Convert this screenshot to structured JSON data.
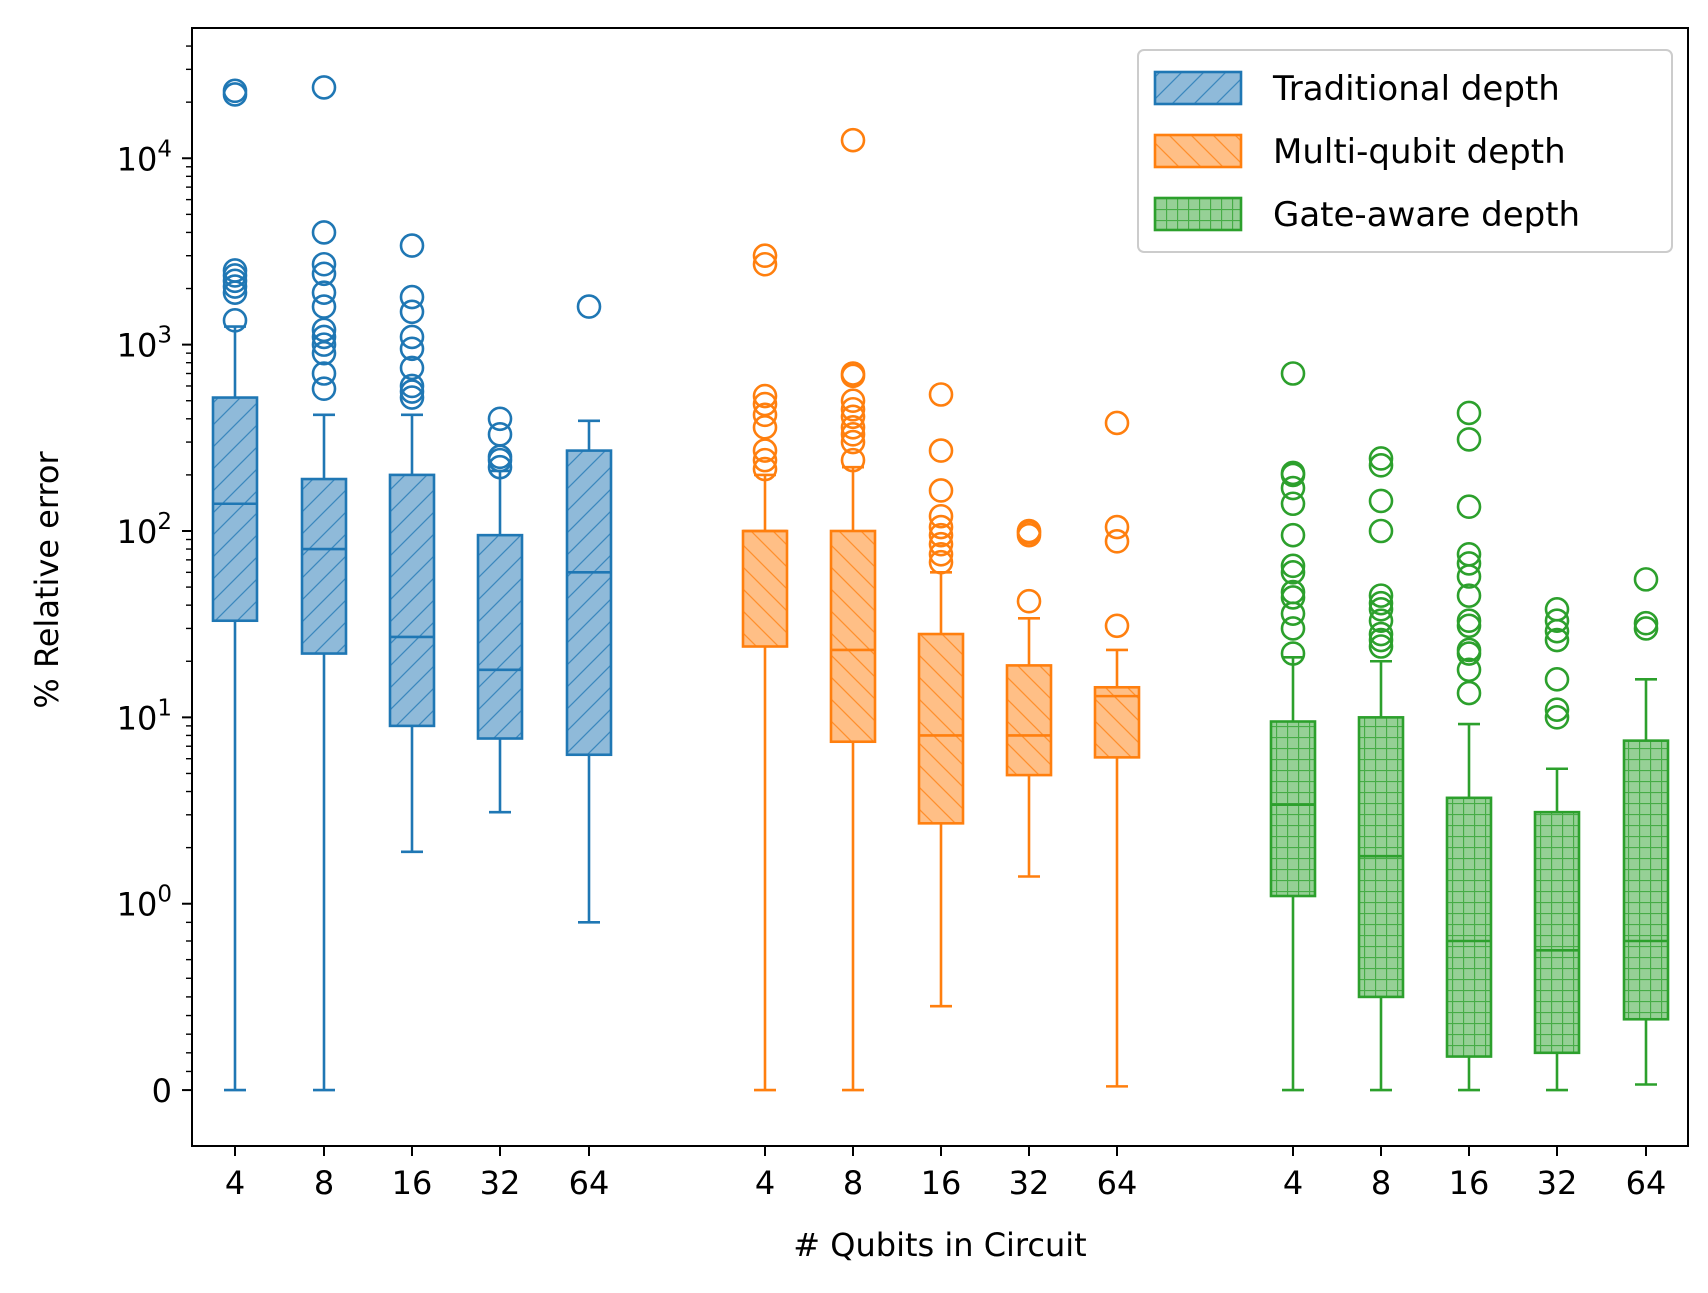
{
  "chart_data": {
    "type": "box",
    "title": "",
    "xlabel": "# Qubits in Circuit",
    "ylabel": "% Relative error",
    "yscale": "symlog",
    "ylim": [
      -0.3,
      50000
    ],
    "y_ticks": [
      {
        "value": 0,
        "base": "0",
        "exp": ""
      },
      {
        "value": 1,
        "base": "10",
        "exp": "0"
      },
      {
        "value": 10,
        "base": "10",
        "exp": "1"
      },
      {
        "value": 100,
        "base": "10",
        "exp": "2"
      },
      {
        "value": 1000,
        "base": "10",
        "exp": "3"
      },
      {
        "value": 10000,
        "base": "10",
        "exp": "4"
      }
    ],
    "categories": [
      "4",
      "8",
      "16",
      "32",
      "64"
    ],
    "legend_position": "top-right",
    "grid": false,
    "series": [
      {
        "name": "Traditional depth",
        "color": "#1f77b4",
        "fill": "#8fbad9",
        "hatch": "diagonal-up",
        "boxes": [
          {
            "category": "4",
            "whisker_low": 0,
            "q1": 33,
            "median": 140,
            "q3": 520,
            "whisker_high": 1250,
            "outliers": [
              1350,
              1900,
              2050,
              2200,
              2350,
              2500,
              22000,
              23000
            ]
          },
          {
            "category": "8",
            "whisker_low": 0,
            "q1": 22,
            "median": 80,
            "q3": 190,
            "whisker_high": 420,
            "outliers": [
              580,
              700,
              900,
              1000,
              1100,
              1200,
              1600,
              1900,
              2400,
              2700,
              4000,
              24000
            ]
          },
          {
            "category": "16",
            "whisker_low": 1.9,
            "q1": 9,
            "median": 27,
            "q3": 200,
            "whisker_high": 420,
            "outliers": [
              520,
              560,
              600,
              750,
              950,
              1100,
              1500,
              1800,
              3400
            ]
          },
          {
            "category": "32",
            "whisker_low": 3.1,
            "q1": 7.7,
            "median": 18,
            "q3": 95,
            "whisker_high": 210,
            "outliers": [
              220,
              240,
              250,
              330,
              400
            ]
          },
          {
            "category": "64",
            "whisker_low": 0.9,
            "q1": 6.3,
            "median": 60,
            "q3": 270,
            "whisker_high": 390,
            "outliers": [
              1600
            ]
          }
        ]
      },
      {
        "name": "Multi-qubit depth",
        "color": "#ff7f0e",
        "fill": "#ffbf86",
        "hatch": "diagonal-down",
        "boxes": [
          {
            "category": "4",
            "whisker_low": 0,
            "q1": 24,
            "median": 100,
            "q3": 100,
            "whisker_high": 200,
            "outliers": [
              215,
              240,
              270,
              360,
              420,
              480,
              530,
              2700,
              3000
            ]
          },
          {
            "category": "8",
            "whisker_low": 0,
            "q1": 7.4,
            "median": 23,
            "q3": 100,
            "whisker_high": 220,
            "outliers": [
              240,
              300,
              330,
              360,
              410,
              450,
              500,
              680,
              700,
              12500
            ]
          },
          {
            "category": "16",
            "whisker_low": 0.45,
            "q1": 2.7,
            "median": 8,
            "q3": 28,
            "whisker_high": 60,
            "outliers": [
              68,
              75,
              85,
              95,
              105,
              120,
              165,
              270,
              540
            ]
          },
          {
            "category": "32",
            "whisker_low": 1.4,
            "q1": 4.9,
            "median": 8,
            "q3": 19,
            "whisker_high": 34,
            "outliers": [
              42,
              95,
              98,
              100
            ]
          },
          {
            "category": "64",
            "whisker_low": 0.02,
            "q1": 6.1,
            "median": 13,
            "q3": 14.5,
            "whisker_high": 23,
            "outliers": [
              31,
              88,
              105,
              380
            ]
          }
        ]
      },
      {
        "name": "Gate-aware depth",
        "color": "#2ca02c",
        "fill": "#96d096",
        "hatch": "grid",
        "boxes": [
          {
            "category": "4",
            "whisker_low": 0,
            "q1": 1.1,
            "median": 3.4,
            "q3": 9.5,
            "whisker_high": 21,
            "outliers": [
              22,
              30,
              36,
              44,
              47,
              60,
              65,
              95,
              140,
              170,
              200,
              205,
              700
            ]
          },
          {
            "category": "8",
            "whisker_low": 0,
            "q1": 0.5,
            "median": 1.8,
            "q3": 10,
            "whisker_high": 20,
            "outliers": [
              24,
              26,
              28,
              33,
              38,
              41,
              45,
              100,
              145,
              225,
              245
            ]
          },
          {
            "category": "16",
            "whisker_low": 0,
            "q1": 0.18,
            "median": 0.8,
            "q3": 3.7,
            "whisker_high": 9.2,
            "outliers": [
              13.5,
              18,
              22,
              23,
              31,
              33,
              45,
              57,
              67,
              75,
              135,
              310,
              430
            ]
          },
          {
            "category": "32",
            "whisker_low": 0,
            "q1": 0.2,
            "median": 0.75,
            "q3": 3.1,
            "whisker_high": 5.3,
            "outliers": [
              10,
              11,
              16,
              26,
              29,
              33,
              38
            ]
          },
          {
            "category": "64",
            "whisker_low": 0.03,
            "q1": 0.38,
            "median": 0.8,
            "q3": 7.5,
            "whisker_high": 16,
            "outliers": [
              30,
              32,
              55
            ]
          }
        ]
      }
    ]
  }
}
